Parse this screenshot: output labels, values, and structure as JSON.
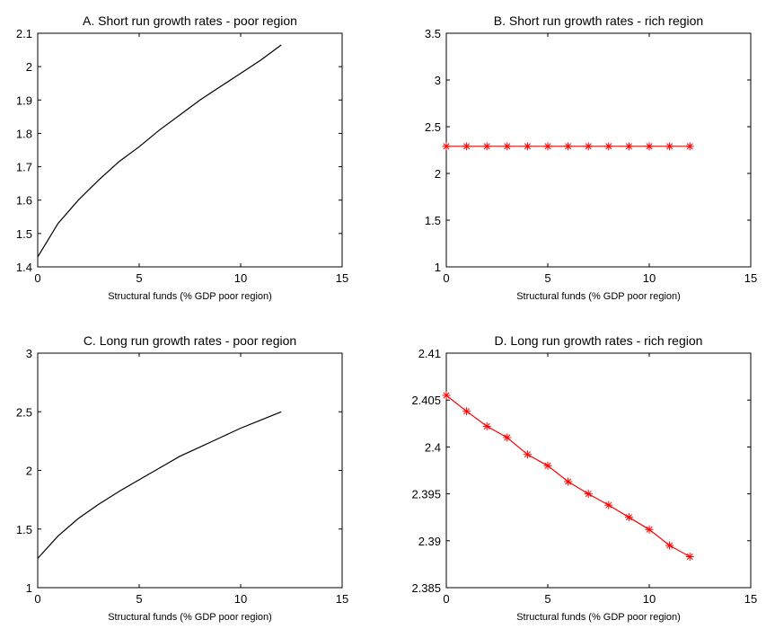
{
  "chart_data": [
    {
      "type": "line",
      "title": "A. Short run growth rates - poor region",
      "xlabel": "Structural funds (% GDP poor region)",
      "ylabel": "",
      "xlim": [
        0,
        15
      ],
      "ylim": [
        1.4,
        2.1
      ],
      "xticks": [
        "0",
        "5",
        "10",
        "15"
      ],
      "yticks": [
        "1.4",
        "1.5",
        "1.6",
        "1.7",
        "1.8",
        "1.9",
        "2",
        "2.1"
      ],
      "series": [
        {
          "color": "#000000",
          "marker": "none",
          "x": [
            0,
            1,
            2,
            3,
            4,
            5,
            6,
            7,
            8,
            9,
            10,
            11,
            12
          ],
          "y": [
            1.43,
            1.53,
            1.6,
            1.66,
            1.715,
            1.76,
            1.81,
            1.855,
            1.9,
            1.94,
            1.98,
            2.02,
            2.065
          ]
        }
      ]
    },
    {
      "type": "line",
      "title": "B. Short run growth rates - rich region",
      "xlabel": "Structural funds (% GDP poor region)",
      "ylabel": "",
      "xlim": [
        0,
        15
      ],
      "ylim": [
        1,
        3.5
      ],
      "xticks": [
        "0",
        "5",
        "10",
        "15"
      ],
      "yticks": [
        "1",
        "1.5",
        "2",
        "2.5",
        "3",
        "3.5"
      ],
      "series": [
        {
          "color": "#ff0000",
          "marker": "asterisk",
          "x": [
            0,
            1,
            2,
            3,
            4,
            5,
            6,
            7,
            8,
            9,
            10,
            11,
            12
          ],
          "y": [
            2.29,
            2.29,
            2.29,
            2.29,
            2.29,
            2.29,
            2.29,
            2.29,
            2.29,
            2.29,
            2.29,
            2.29,
            2.29
          ]
        }
      ]
    },
    {
      "type": "line",
      "title": "C. Long run growth rates - poor region",
      "xlabel": "Structural funds (% GDP poor region)",
      "ylabel": "",
      "xlim": [
        0,
        15
      ],
      "ylim": [
        1,
        3
      ],
      "xticks": [
        "0",
        "5",
        "10",
        "15"
      ],
      "yticks": [
        "1",
        "1.5",
        "2",
        "2.5",
        "3"
      ],
      "series": [
        {
          "color": "#000000",
          "marker": "none",
          "x": [
            0,
            1,
            2,
            3,
            4,
            5,
            6,
            7,
            8,
            9,
            10,
            11,
            12
          ],
          "y": [
            1.25,
            1.44,
            1.59,
            1.71,
            1.82,
            1.92,
            2.02,
            2.12,
            2.2,
            2.28,
            2.36,
            2.43,
            2.5
          ]
        }
      ]
    },
    {
      "type": "line",
      "title": "D. Long run growth rates - rich region",
      "xlabel": "Structural funds (% GDP poor region)",
      "ylabel": "",
      "xlim": [
        0,
        15
      ],
      "ylim": [
        2.385,
        2.41
      ],
      "xticks": [
        "0",
        "5",
        "10",
        "15"
      ],
      "yticks": [
        "2.385",
        "2.39",
        "2.395",
        "2.4",
        "2.405",
        "2.41"
      ],
      "series": [
        {
          "color": "#ff0000",
          "marker": "asterisk",
          "x": [
            0,
            1,
            2,
            3,
            4,
            5,
            6,
            7,
            8,
            9,
            10,
            11,
            12
          ],
          "y": [
            2.4055,
            2.4038,
            2.4022,
            2.401,
            2.3992,
            2.398,
            2.3963,
            2.395,
            2.3938,
            2.3925,
            2.3912,
            2.3895,
            2.3883
          ]
        }
      ]
    }
  ]
}
